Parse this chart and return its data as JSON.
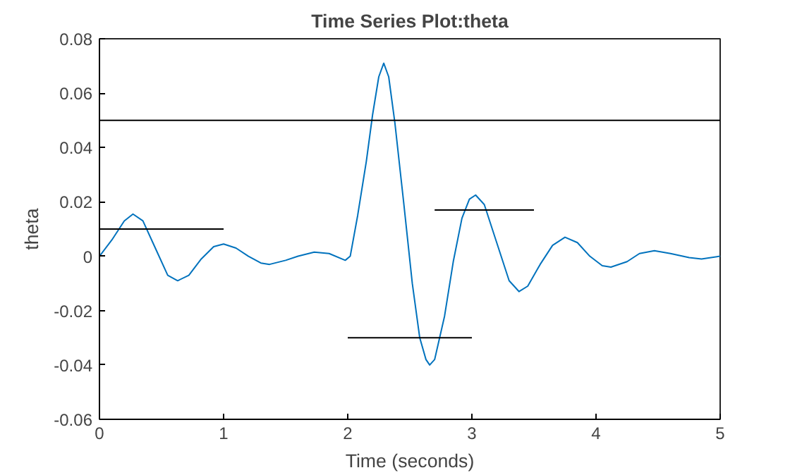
{
  "chart_data": {
    "type": "line",
    "title": "Time Series Plot:theta",
    "xlabel": "Time (seconds)",
    "ylabel": "theta",
    "xlim": [
      0,
      5
    ],
    "ylim": [
      -0.06,
      0.08
    ],
    "xticks": [
      0,
      1,
      2,
      3,
      4,
      5
    ],
    "yticks": [
      -0.06,
      -0.04,
      -0.02,
      0,
      0.02,
      0.04,
      0.06,
      0.08
    ],
    "grid": false,
    "series": [
      {
        "color": "#0072bd",
        "x": [
          0,
          0.1,
          0.2,
          0.27,
          0.35,
          0.45,
          0.55,
          0.63,
          0.72,
          0.82,
          0.92,
          1.0,
          1.1,
          1.2,
          1.3,
          1.37,
          1.5,
          1.6,
          1.73,
          1.85,
          1.98,
          2.02,
          2.08,
          2.15,
          2.2,
          2.25,
          2.29,
          2.33,
          2.38,
          2.45,
          2.52,
          2.58,
          2.63,
          2.66,
          2.7,
          2.78,
          2.85,
          2.92,
          2.98,
          3.03,
          3.1,
          3.2,
          3.3,
          3.38,
          3.45,
          3.55,
          3.65,
          3.75,
          3.85,
          3.95,
          4.05,
          4.12,
          4.25,
          4.35,
          4.47,
          4.6,
          4.75,
          4.85,
          5
        ],
        "values": [
          0,
          0.006,
          0.013,
          0.0155,
          0.013,
          0.003,
          -0.007,
          -0.009,
          -0.007,
          -0.001,
          0.0035,
          0.0045,
          0.003,
          0.0,
          -0.0025,
          -0.003,
          -0.0015,
          0.0,
          0.0015,
          0.001,
          -0.0015,
          0.0,
          0.015,
          0.035,
          0.052,
          0.066,
          0.071,
          0.066,
          0.049,
          0.02,
          -0.01,
          -0.03,
          -0.038,
          -0.04,
          -0.038,
          -0.022,
          -0.002,
          0.014,
          0.021,
          0.0225,
          0.019,
          0.005,
          -0.009,
          -0.013,
          -0.011,
          -0.003,
          0.004,
          0.007,
          0.005,
          0.0,
          -0.0035,
          -0.004,
          -0.002,
          0.001,
          0.002,
          0.001,
          -0.0005,
          -0.001,
          0
        ]
      },
      {
        "color": "#000000",
        "x": [
          0,
          1
        ],
        "values": [
          0.01,
          0.01
        ]
      },
      {
        "color": "#000000",
        "x": [
          2,
          3
        ],
        "values": [
          -0.03,
          -0.03
        ]
      },
      {
        "color": "#000000",
        "x": [
          2.7,
          3.5
        ],
        "values": [
          0.017,
          0.017
        ]
      }
    ],
    "ref_lines": [
      {
        "axis": "y",
        "value": 0.05,
        "color": "#000000"
      }
    ]
  }
}
